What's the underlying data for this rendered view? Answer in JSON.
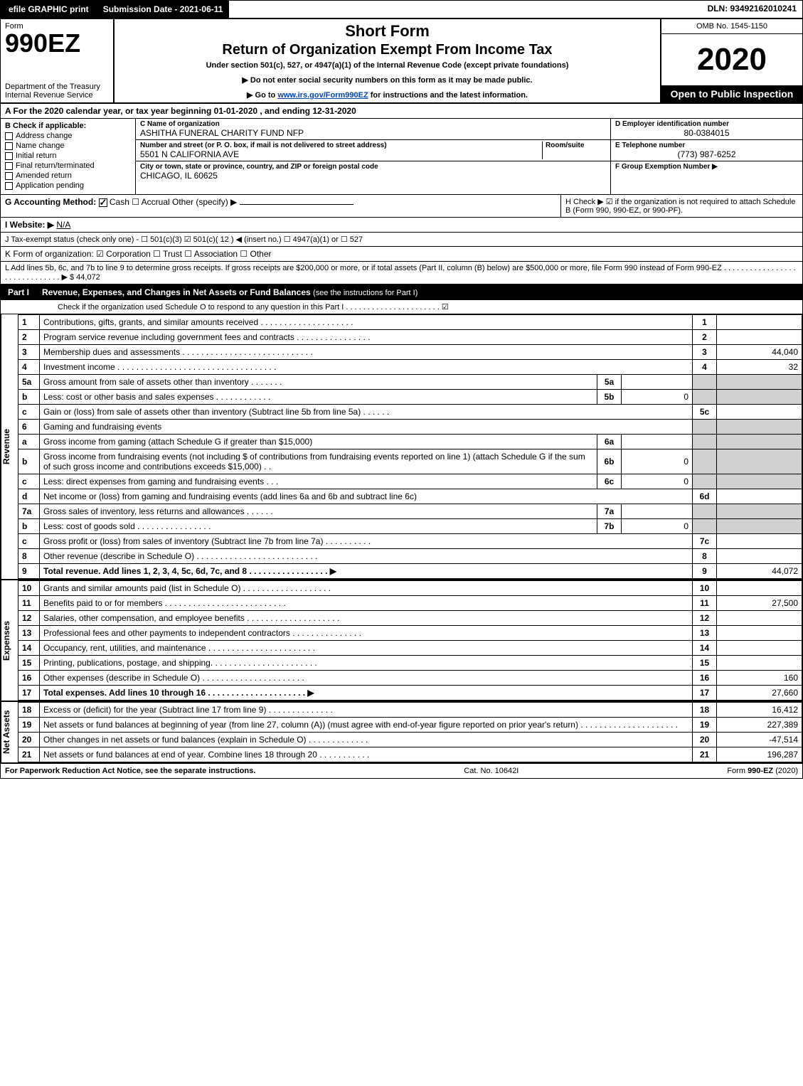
{
  "topbar": {
    "efile": "efile GRAPHIC print",
    "subdate_label": "Submission Date - 2021-06-11",
    "dln": "DLN: 93492162010241"
  },
  "header": {
    "form_word": "Form",
    "form_num": "990EZ",
    "dept": "Department of the Treasury",
    "irs": "Internal Revenue Service",
    "title1": "Short Form",
    "title2": "Return of Organization Exempt From Income Tax",
    "sub1": "Under section 501(c), 527, or 4947(a)(1) of the Internal Revenue Code (except private foundations)",
    "sub2": "▶ Do not enter social security numbers on this form as it may be made public.",
    "sub3_pre": "▶ Go to ",
    "sub3_link": "www.irs.gov/Form990EZ",
    "sub3_post": " for instructions and the latest information.",
    "omb": "OMB No. 1545-1150",
    "year": "2020",
    "open": "Open to Public Inspection"
  },
  "line_a": "A For the 2020 calendar year, or tax year beginning 01-01-2020 , and ending 12-31-2020",
  "section_b": {
    "heading": "B Check if applicable:",
    "opts": [
      "Address change",
      "Name change",
      "Initial return",
      "Final return/terminated",
      "Amended return",
      "Application pending"
    ]
  },
  "section_c": {
    "name_lbl": "C Name of organization",
    "name_val": "ASHITHA FUNERAL CHARITY FUND NFP",
    "addr_lbl": "Number and street (or P. O. box, if mail is not delivered to street address)",
    "addr_val": "5501 N CALIFORNIA AVE",
    "room_lbl": "Room/suite",
    "city_lbl": "City or town, state or province, country, and ZIP or foreign postal code",
    "city_val": "CHICAGO, IL  60625"
  },
  "section_d": {
    "ein_lbl": "D Employer identification number",
    "ein_val": "80-0384015",
    "tel_lbl": "E Telephone number",
    "tel_val": "(773) 987-6252",
    "grp_lbl": "F Group Exemption Number ▶"
  },
  "lines": {
    "g": "G Accounting Method:",
    "g_opts": "Cash   ☐ Accrual   Other (specify) ▶",
    "h": "H Check ▶ ☑ if the organization is not required to attach Schedule B (Form 990, 990-EZ, or 990-PF).",
    "i": "I Website: ▶",
    "i_val": "N/A",
    "j": "J Tax-exempt status (check only one) - ☐ 501(c)(3) ☑ 501(c)( 12 ) ◀ (insert no.) ☐ 4947(a)(1) or ☐ 527",
    "k": "K Form of organization: ☑ Corporation  ☐ Trust  ☐ Association  ☐ Other",
    "l": "L Add lines 5b, 6c, and 7b to line 9 to determine gross receipts. If gross receipts are $200,000 or more, or if total assets (Part II, column (B) below) are $500,000 or more, file Form 990 instead of Form 990-EZ   .  .  .  .  .  .  .  .  .  .  .  .  .  .  .  .  .  .  .  .  .  .  .  .  .  .  .  .  .  .  ▶ $ 44,072"
  },
  "part1": {
    "num": "Part I",
    "title": "Revenue, Expenses, and Changes in Net Assets or Fund Balances",
    "sub": "(see the instructions for Part I)",
    "check_line": "Check if the organization used Schedule O to respond to any question in this Part I  .  .  .  .  .  .  .  .  .  .  .  .  .  .  .  .  .  .  .  .  .  .  ☑"
  },
  "table": {
    "revenue_label": "Revenue",
    "expenses_label": "Expenses",
    "netassets_label": "Net Assets",
    "rows": [
      {
        "n": "1",
        "d": "Contributions, gifts, grants, and similar amounts received  .  .  .  .  .  .  .  .  .  .  .  .  .  .  .  .  .  .  .  .",
        "r": "1",
        "a": ""
      },
      {
        "n": "2",
        "d": "Program service revenue including government fees and contracts  .  .  .  .  .  .  .  .  .  .  .  .  .  .  .  .",
        "r": "2",
        "a": ""
      },
      {
        "n": "3",
        "d": "Membership dues and assessments  .  .  .  .  .  .  .  .  .  .  .  .  .  .  .  .  .  .  .  .  .  .  .  .  .  .  .  .",
        "r": "3",
        "a": "44,040"
      },
      {
        "n": "4",
        "d": "Investment income  .  .  .  .  .  .  .  .  .  .  .  .  .  .  .  .  .  .  .  .  .  .  .  .  .  .  .  .  .  .  .  .  .  .",
        "r": "4",
        "a": "32"
      },
      {
        "n": "5a",
        "d": "Gross amount from sale of assets other than inventory  .  .  .  .  .  .  .",
        "sn": "5a",
        "sa": "",
        "shade": true
      },
      {
        "n": "b",
        "d": "Less: cost or other basis and sales expenses  .  .  .  .  .  .  .  .  .  .  .  .",
        "sn": "5b",
        "sa": "0",
        "shade": true
      },
      {
        "n": "c",
        "d": "Gain or (loss) from sale of assets other than inventory (Subtract line 5b from line 5a)  .  .  .  .  .  .",
        "r": "5c",
        "a": ""
      },
      {
        "n": "6",
        "d": "Gaming and fundraising events",
        "shade": true,
        "norow": true
      },
      {
        "n": "a",
        "d": "Gross income from gaming (attach Schedule G if greater than $15,000)",
        "sn": "6a",
        "sa": "",
        "shade": true
      },
      {
        "n": "b",
        "d": "Gross income from fundraising events (not including $                    of contributions from fundraising events reported on line 1) (attach Schedule G if the sum of such gross income and contributions exceeds $15,000)   .  .",
        "sn": "6b",
        "sa": "0",
        "shade": true
      },
      {
        "n": "c",
        "d": "Less: direct expenses from gaming and fundraising events    .  .  .",
        "sn": "6c",
        "sa": "0",
        "shade": true
      },
      {
        "n": "d",
        "d": "Net income or (loss) from gaming and fundraising events (add lines 6a and 6b and subtract line 6c)",
        "r": "6d",
        "a": ""
      },
      {
        "n": "7a",
        "d": "Gross sales of inventory, less returns and allowances   .  .  .  .  .  .",
        "sn": "7a",
        "sa": "",
        "shade": true
      },
      {
        "n": "b",
        "d": "Less: cost of goods sold        .  .  .  .  .  .  .  .  .  .  .  .  .  .  .  .",
        "sn": "7b",
        "sa": "0",
        "shade": true
      },
      {
        "n": "c",
        "d": "Gross profit or (loss) from sales of inventory (Subtract line 7b from line 7a)   .  .  .  .  .  .  .  .  .  .",
        "r": "7c",
        "a": ""
      },
      {
        "n": "8",
        "d": "Other revenue (describe in Schedule O)  .  .  .  .  .  .  .  .  .  .  .  .  .  .  .  .  .  .  .  .  .  .  .  .  .  .",
        "r": "8",
        "a": ""
      },
      {
        "n": "9",
        "d": "Total revenue. Add lines 1, 2, 3, 4, 5c, 6d, 7c, and 8   .  .  .  .  .  .  .  .  .  .  .  .  .  .  .  .  .  ▶",
        "r": "9",
        "a": "44,072",
        "bold": true
      }
    ],
    "exp_rows": [
      {
        "n": "10",
        "d": "Grants and similar amounts paid (list in Schedule O)   .  .  .  .  .  .  .  .  .  .  .  .  .  .  .  .  .  .  .",
        "r": "10",
        "a": ""
      },
      {
        "n": "11",
        "d": "Benefits paid to or for members      .  .  .  .  .  .  .  .  .  .  .  .  .  .  .  .  .  .  .  .  .  .  .  .  .  .",
        "r": "11",
        "a": "27,500"
      },
      {
        "n": "12",
        "d": "Salaries, other compensation, and employee benefits  .  .  .  .  .  .  .  .  .  .  .  .  .  .  .  .  .  .  .  .",
        "r": "12",
        "a": ""
      },
      {
        "n": "13",
        "d": "Professional fees and other payments to independent contractors  .  .  .  .  .  .  .  .  .  .  .  .  .  .  .",
        "r": "13",
        "a": ""
      },
      {
        "n": "14",
        "d": "Occupancy, rent, utilities, and maintenance  .  .  .  .  .  .  .  .  .  .  .  .  .  .  .  .  .  .  .  .  .  .  .",
        "r": "14",
        "a": ""
      },
      {
        "n": "15",
        "d": "Printing, publications, postage, and shipping.   .  .  .  .  .  .  .  .  .  .  .  .  .  .  .  .  .  .  .  .  .  .",
        "r": "15",
        "a": ""
      },
      {
        "n": "16",
        "d": "Other expenses (describe in Schedule O)      .  .  .  .  .  .  .  .  .  .  .  .  .  .  .  .  .  .  .  .  .  .",
        "r": "16",
        "a": "160"
      },
      {
        "n": "17",
        "d": "Total expenses. Add lines 10 through 16     .  .  .  .  .  .  .  .  .  .  .  .  .  .  .  .  .  .  .  .  .  ▶",
        "r": "17",
        "a": "27,660",
        "bold": true
      }
    ],
    "net_rows": [
      {
        "n": "18",
        "d": "Excess or (deficit) for the year (Subtract line 17 from line 9)         .  .  .  .  .  .  .  .  .  .  .  .  .  .",
        "r": "18",
        "a": "16,412"
      },
      {
        "n": "19",
        "d": "Net assets or fund balances at beginning of year (from line 27, column (A)) (must agree with end-of-year figure reported on prior year's return)  .  .  .  .  .  .  .  .  .  .  .  .  .  .  .  .  .  .  .  .  .",
        "r": "19",
        "a": "227,389"
      },
      {
        "n": "20",
        "d": "Other changes in net assets or fund balances (explain in Schedule O)  .  .  .  .  .  .  .  .  .  .  .  .  .",
        "r": "20",
        "a": "-47,514"
      },
      {
        "n": "21",
        "d": "Net assets or fund balances at end of year. Combine lines 18 through 20  .  .  .  .  .  .  .  .  .  .  .",
        "r": "21",
        "a": "196,287"
      }
    ]
  },
  "footer": {
    "left": "For Paperwork Reduction Act Notice, see the separate instructions.",
    "mid": "Cat. No. 10642I",
    "right_pre": "Form ",
    "right_form": "990-EZ",
    "right_post": " (2020)"
  }
}
